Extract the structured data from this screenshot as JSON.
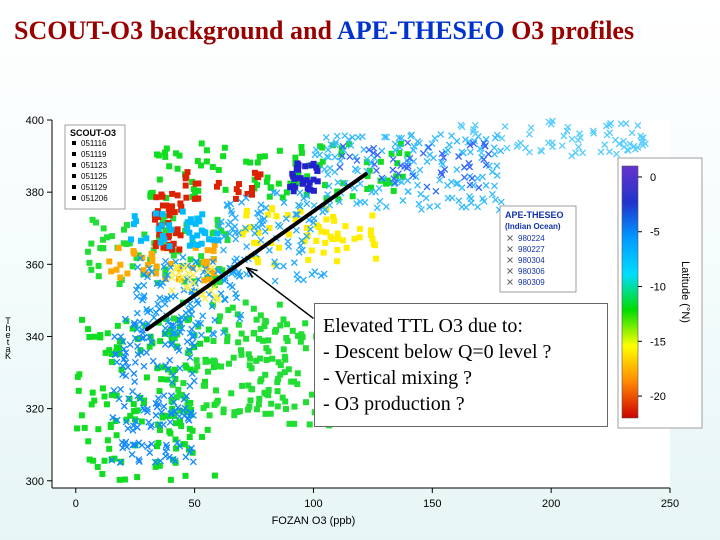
{
  "slide": {
    "title_part1": "SCOUT-O3 background and ",
    "title_part2": "APE-THESEO",
    "title_part3": " O3 profiles",
    "title_color_main": "#990000",
    "title_color_accent": "#0033cc"
  },
  "annotation": {
    "lines": [
      "Elevated TTL O3 due to:",
      "- Descent below Q=0 level ?",
      "- Vertical mixing ?",
      "- O3 production ?"
    ]
  },
  "chart_data": {
    "type": "scatter",
    "xlabel": "FOZAN O3 (ppb)",
    "ylabel": "Theta K",
    "xlim": [
      -10,
      250
    ],
    "ylim": [
      298,
      400
    ],
    "x_ticks": [
      0,
      50,
      100,
      150,
      200,
      250
    ],
    "y_ticks": [
      300,
      320,
      340,
      360,
      380,
      400
    ],
    "grid": false,
    "legend_scout": {
      "title": "SCOUT-O3",
      "entries": [
        "051116",
        "051119",
        "051123",
        "051125",
        "051129",
        "051206"
      ],
      "marker": "square",
      "placement": "top-left"
    },
    "legend_ape": {
      "title": "APE-THESEO",
      "subtitle": "(Indian Ocean)",
      "entries": [
        "980224",
        "980227",
        "980304",
        "980306",
        "980309"
      ],
      "marker": "x",
      "placement": "center-right"
    },
    "colorbar": {
      "label": "Latitude (°N)",
      "ticks": [
        0,
        -5,
        -10,
        -15,
        -20
      ],
      "range": [
        -22,
        1
      ],
      "colors": [
        "#cc0000",
        "#ff8800",
        "#ffff00",
        "#00dd00",
        "#00ddff",
        "#0099ff",
        "#2233cc",
        "#6633cc"
      ]
    },
    "point_series": [
      {
        "name": "SCOUT-O3",
        "marker": "square",
        "clusters": [
          {
            "x_range": [
              0,
              60
            ],
            "y_range": [
              300,
              345
            ],
            "count": 150,
            "color": "#11dd22"
          },
          {
            "x_range": [
              40,
              90
            ],
            "y_range": [
              318,
              350
            ],
            "count": 100,
            "color": "#22dd33"
          },
          {
            "x_range": [
              65,
              110
            ],
            "y_range": [
              315,
              345
            ],
            "count": 60,
            "color": "#22dd33"
          },
          {
            "x_range": [
              5,
              65
            ],
            "y_range": [
              354,
              374
            ],
            "count": 70,
            "color": "#22dd33"
          },
          {
            "x_range": [
              30,
              140
            ],
            "y_range": [
              378,
              394
            ],
            "count": 90,
            "color": "#11dd22"
          },
          {
            "x_range": [
              70,
              130
            ],
            "y_range": [
              360,
              376
            ],
            "count": 60,
            "color": "#ffee00"
          },
          {
            "x_range": [
              10,
              60
            ],
            "y_range": [
              355,
              366
            ],
            "count": 40,
            "color": "#ffaa00"
          },
          {
            "x_range": [
              33,
              45
            ],
            "y_range": [
              364,
              380
            ],
            "count": 40,
            "color": "#dd2200"
          },
          {
            "x_range": [
              45,
              80
            ],
            "y_range": [
              378,
              386
            ],
            "count": 25,
            "color": "#dd2200"
          },
          {
            "x_range": [
              90,
              102
            ],
            "y_range": [
              380,
              388
            ],
            "count": 30,
            "color": "#2222cc"
          },
          {
            "x_range": [
              20,
              60
            ],
            "y_range": [
              365,
              375
            ],
            "count": 40,
            "color": "#00bbff"
          }
        ]
      },
      {
        "name": "APE-THESEO",
        "marker": "x",
        "clusters": [
          {
            "x_range": [
              15,
              50
            ],
            "y_range": [
              305,
              345
            ],
            "count": 150,
            "color": "#1188ff"
          },
          {
            "x_range": [
              25,
              70
            ],
            "y_range": [
              340,
              362
            ],
            "count": 110,
            "color": "#1199ff"
          },
          {
            "x_range": [
              60,
              105
            ],
            "y_range": [
              355,
              380
            ],
            "count": 90,
            "color": "#22aaff"
          },
          {
            "x_range": [
              100,
              180
            ],
            "y_range": [
              375,
              396
            ],
            "count": 150,
            "color": "#33bbff"
          },
          {
            "x_range": [
              160,
              240
            ],
            "y_range": [
              390,
              400
            ],
            "count": 70,
            "color": "#55ccff"
          },
          {
            "x_range": [
              110,
              175
            ],
            "y_range": [
              380,
              394
            ],
            "count": 50,
            "color": "#3366ff"
          },
          {
            "x_range": [
              40,
              60
            ],
            "y_range": [
              350,
              360
            ],
            "count": 30,
            "color": "#ffee44"
          }
        ]
      }
    ],
    "trend_line": {
      "from": [
        30,
        342
      ],
      "to": [
        122,
        385
      ],
      "color": "#000000"
    },
    "arrow": {
      "from": [
        100,
        345
      ],
      "to": [
        72,
        359
      ]
    }
  }
}
